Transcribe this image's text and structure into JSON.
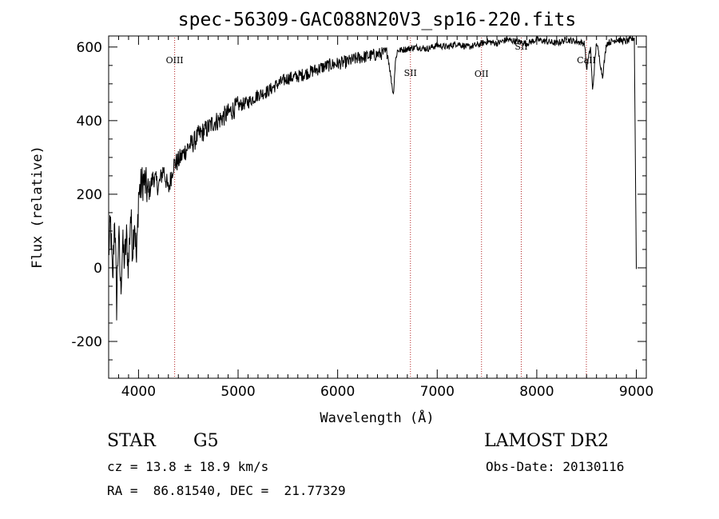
{
  "chart_data": {
    "type": "line",
    "title": "spec-56309-GAC088N20V3_sp16-220.fits",
    "xlabel": "Wavelength (Å)",
    "ylabel": "Flux (relative)",
    "xlim": [
      3700,
      9100
    ],
    "ylim": [
      -300,
      630
    ],
    "xticks": [
      4000,
      5000,
      6000,
      7000,
      8000,
      9000
    ],
    "yticks": [
      -200,
      0,
      200,
      400,
      600
    ],
    "grid": false,
    "series": [
      {
        "x": [
          3700,
          3720,
          3740,
          3760,
          3780,
          3800,
          3820,
          3840,
          3860,
          3880,
          3900,
          3920,
          3940,
          3960,
          3980,
          4000,
          4050,
          4100,
          4150,
          4200,
          4250,
          4300,
          4350,
          4400,
          4450,
          4500,
          4550,
          4600,
          4650,
          4700,
          4750,
          4800,
          4850,
          4900,
          4950,
          5000,
          5100,
          5200,
          5300,
          5400,
          5500,
          5600,
          5700,
          5800,
          5900,
          6000,
          6100,
          6200,
          6300,
          6400,
          6500,
          6560,
          6580,
          6600,
          6700,
          6800,
          6900,
          7000,
          7100,
          7200,
          7300,
          7400,
          7500,
          7600,
          7700,
          7800,
          7900,
          8000,
          8100,
          8200,
          8300,
          8400,
          8480,
          8500,
          8540,
          8560,
          8600,
          8660,
          8700,
          8800,
          8900,
          8980,
          9000
        ],
        "y": [
          40,
          120,
          -50,
          150,
          -100,
          100,
          -60,
          60,
          20,
          80,
          0,
          150,
          50,
          140,
          10,
          200,
          240,
          200,
          250,
          220,
          270,
          210,
          280,
          290,
          310,
          330,
          340,
          360,
          370,
          380,
          395,
          400,
          410,
          420,
          430,
          440,
          450,
          470,
          480,
          500,
          515,
          520,
          530,
          540,
          550,
          555,
          560,
          570,
          575,
          580,
          585,
          470,
          560,
          590,
          595,
          600,
          595,
          605,
          600,
          610,
          600,
          605,
          615,
          610,
          620,
          615,
          610,
          620,
          615,
          610,
          620,
          615,
          610,
          540,
          600,
          480,
          615,
          520,
          610,
          620,
          615,
          625,
          0
        ]
      }
    ],
    "reference_lines": [
      {
        "label": "OIII",
        "x": 4363
      },
      {
        "label": "SII",
        "x": 6731
      },
      {
        "label": "OII",
        "x": 7445
      },
      {
        "label": "SII",
        "x": 7844
      },
      {
        "label": "CaII",
        "x": 8498
      }
    ]
  },
  "info": {
    "object_class": "STAR",
    "subclass": "G5",
    "survey": "LAMOST DR2",
    "cz": "cz = 13.8 ± 18.9 km/s",
    "obs_date": "Obs-Date: 20130116",
    "coords": "RA =  86.81540, DEC =  21.77329"
  },
  "colors": {
    "spectrum": "#000000",
    "reference_line": "#b22222"
  }
}
